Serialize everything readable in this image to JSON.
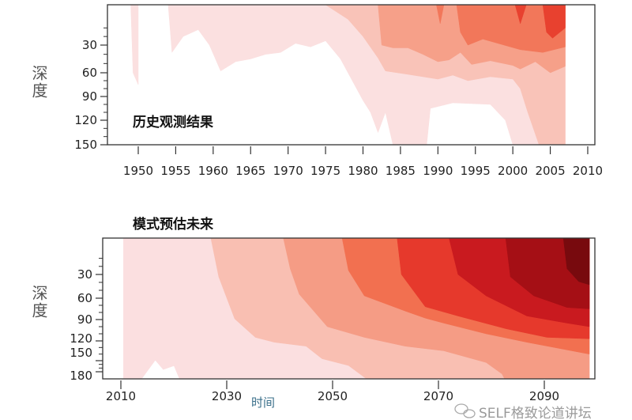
{
  "chart_data": [
    {
      "type": "heatmap",
      "subtype": "filled-contour",
      "title": "历史观测结果",
      "xlabel": "",
      "ylabel": "深度",
      "xticks": [
        1950,
        1955,
        1960,
        1965,
        1970,
        1975,
        1980,
        1985,
        1990,
        1995,
        2000,
        2005,
        2010
      ],
      "yticks": [
        30,
        60,
        90,
        120,
        150
      ],
      "xlim": [
        1946,
        2011
      ],
      "ylim": [
        0,
        150
      ],
      "y_inverted": true,
      "grid": false,
      "levels": [
        {
          "level": 1,
          "color": "#fbe0e0",
          "polygon": [
            [
              1949,
              -17
            ],
            [
              1949.3,
              60
            ],
            [
              1950,
              75
            ],
            [
              1950,
              -17
            ]
          ]
        },
        {
          "level": 1,
          "color": "#fbe0e0",
          "polygon": [
            [
              1954,
              -17
            ],
            [
              1954.5,
              38
            ],
            [
              1956,
              20
            ],
            [
              1958,
              12
            ],
            [
              1959.5,
              30
            ],
            [
              1961,
              58
            ],
            [
              1963,
              48
            ],
            [
              1965,
              45
            ],
            [
              1967,
              40
            ],
            [
              1969,
              38
            ],
            [
              1971,
              28
            ],
            [
              1973,
              32
            ],
            [
              1975,
              25
            ],
            [
              1977,
              45
            ],
            [
              1980,
              95
            ],
            [
              1981,
              110
            ],
            [
              1982,
              135
            ],
            [
              1983,
              110
            ],
            [
              1984,
              150
            ],
            [
              1988.5,
              150
            ],
            [
              1989,
              105
            ],
            [
              1992,
              98
            ],
            [
              1997,
              100
            ],
            [
              1999,
              120
            ],
            [
              2000,
              150
            ],
            [
              2007,
              150
            ],
            [
              2007,
              -17
            ]
          ]
        },
        {
          "level": 2,
          "color": "#f9c3b8",
          "polygon": [
            [
              1975,
              -17
            ],
            [
              1978,
              0
            ],
            [
              1980,
              20
            ],
            [
              1982,
              44
            ],
            [
              1983,
              58
            ],
            [
              1986,
              62
            ],
            [
              1990,
              68
            ],
            [
              1992,
              63
            ],
            [
              1994,
              70
            ],
            [
              1997,
              65
            ],
            [
              2000,
              68
            ],
            [
              2001,
              80
            ],
            [
              2002,
              110
            ],
            [
              2003.5,
              150
            ],
            [
              2007,
              150
            ],
            [
              2007,
              -17
            ]
          ]
        },
        {
          "level": 3,
          "color": "#f6a089",
          "polygon": [
            [
              1982,
              -17
            ],
            [
              1982.5,
              30
            ],
            [
              1984,
              33
            ],
            [
              1986,
              33
            ],
            [
              1988,
              40
            ],
            [
              1990,
              48
            ],
            [
              1991.5,
              46
            ],
            [
              1993,
              38
            ],
            [
              1994.5,
              51
            ],
            [
              1997,
              47
            ],
            [
              2000,
              52
            ],
            [
              2001,
              56
            ],
            [
              2003,
              48
            ],
            [
              2005,
              60
            ],
            [
              2007,
              53
            ],
            [
              2007,
              -17
            ]
          ]
        },
        {
          "level": 4,
          "color": "#f2775a",
          "polygon": [
            [
              1992.5,
              -17
            ],
            [
              1993,
              15
            ],
            [
              1994,
              30
            ],
            [
              1996,
              23
            ],
            [
              1998,
              28
            ],
            [
              2001,
              35
            ],
            [
              2004,
              38
            ],
            [
              2007,
              32
            ],
            [
              2007,
              -17
            ]
          ]
        },
        {
          "level": 4,
          "color": "#f2775a",
          "polygon": [
            [
              1989.8,
              -17
            ],
            [
              1990.3,
              5
            ],
            [
              1990.8,
              -17
            ]
          ]
        },
        {
          "level": 5,
          "color": "#e8412f",
          "polygon": [
            [
              2000.3,
              -17
            ],
            [
              2001,
              5
            ],
            [
              2001.8,
              -17
            ]
          ]
        },
        {
          "level": 5,
          "color": "#e8412f",
          "polygon": [
            [
              2004,
              -17
            ],
            [
              2004.5,
              15
            ],
            [
              2005.3,
              22
            ],
            [
              2007,
              10
            ],
            [
              2007,
              -17
            ]
          ]
        }
      ]
    },
    {
      "type": "heatmap",
      "subtype": "filled-contour",
      "title": "模式预估未来",
      "xlabel": "时间",
      "ylabel": "深度",
      "xticks": [
        2010,
        2030,
        2050,
        2070,
        2090
      ],
      "yticks": [
        30,
        60,
        90,
        120,
        150,
        180
      ],
      "xlim": [
        2007,
        2100
      ],
      "ylim": [
        0,
        190
      ],
      "y_inverted": true,
      "grid": false,
      "levels": [
        {
          "level": 1,
          "color": "#fbdfe0",
          "polygon": [
            [
              2010.5,
              -15
            ],
            [
              2010.5,
              190
            ],
            [
              2098.5,
              190
            ],
            [
              2098.5,
              -15
            ]
          ]
        },
        {
          "level": 0,
          "color": "#ffffff",
          "polygon": [
            [
              2014,
              190
            ],
            [
              2016.5,
              150
            ],
            [
              2018,
              175
            ],
            [
              2020,
              165
            ],
            [
              2021,
              190
            ]
          ]
        },
        {
          "level": 2,
          "color": "#f9bfb2",
          "polygon": [
            [
              2027,
              -15
            ],
            [
              2028.5,
              33
            ],
            [
              2031.5,
              89
            ],
            [
              2035.4,
              115
            ],
            [
              2039,
              122
            ],
            [
              2045,
              128
            ],
            [
              2048,
              147
            ],
            [
              2053,
              163
            ],
            [
              2056.4,
              190
            ],
            [
              2098.5,
              190
            ],
            [
              2098.5,
              -15
            ]
          ]
        },
        {
          "level": 3,
          "color": "#f59c85",
          "polygon": [
            [
              2040.7,
              -15
            ],
            [
              2042,
              23
            ],
            [
              2043.7,
              55
            ],
            [
              2049,
              100
            ],
            [
              2056,
              115
            ],
            [
              2063.7,
              128
            ],
            [
              2071,
              135
            ],
            [
              2079,
              155
            ],
            [
              2082,
              183
            ],
            [
              2082.5,
              190
            ],
            [
              2098.5,
              190
            ],
            [
              2098.5,
              -15
            ]
          ]
        },
        {
          "level": 4,
          "color": "#f27050",
          "polygon": [
            [
              2051.8,
              -15
            ],
            [
              2053,
              25
            ],
            [
              2056,
              57
            ],
            [
              2063.7,
              78
            ],
            [
              2067.5,
              88
            ],
            [
              2071,
              95
            ],
            [
              2079,
              110
            ],
            [
              2086.7,
              122
            ],
            [
              2098.5,
              140
            ],
            [
              2098.5,
              -15
            ]
          ]
        },
        {
          "level": 5,
          "color": "#e6392c",
          "polygon": [
            [
              2062.2,
              -15
            ],
            [
              2063,
              30
            ],
            [
              2067.5,
              72
            ],
            [
              2073.7,
              85
            ],
            [
              2082.8,
              103
            ],
            [
              2090.5,
              115
            ],
            [
              2098.5,
              117
            ],
            [
              2098.5,
              -15
            ]
          ]
        },
        {
          "level": 6,
          "color": "#c91a1f",
          "polygon": [
            [
              2072,
              -15
            ],
            [
              2073.7,
              30
            ],
            [
              2079,
              57
            ],
            [
              2086.7,
              85
            ],
            [
              2094.3,
              95
            ],
            [
              2098.5,
              100
            ],
            [
              2098.5,
              -15
            ]
          ]
        },
        {
          "level": 7,
          "color": "#a50f15",
          "polygon": [
            [
              2082.7,
              -15
            ],
            [
              2083.6,
              33
            ],
            [
              2088,
              57
            ],
            [
              2094.3,
              73
            ],
            [
              2098.5,
              75
            ],
            [
              2098.5,
              -15
            ]
          ]
        },
        {
          "level": 8,
          "color": "#780a0e",
          "polygon": [
            [
              2093.6,
              -15
            ],
            [
              2094.3,
              23
            ],
            [
              2096.5,
              39
            ],
            [
              2098.5,
              43
            ],
            [
              2098.5,
              -15
            ]
          ]
        }
      ]
    }
  ],
  "watermark": "SELF格致论道讲坛"
}
